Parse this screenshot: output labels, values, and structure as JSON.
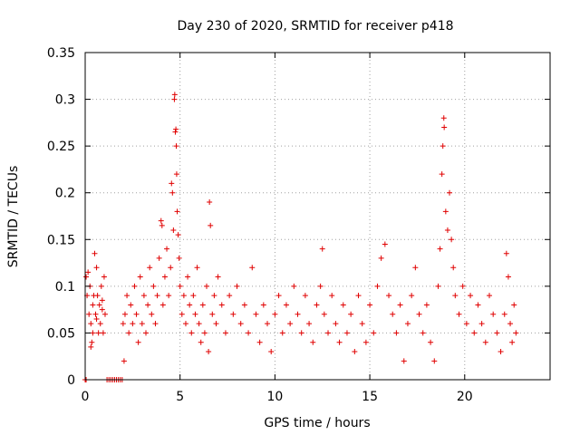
{
  "chart_data": {
    "type": "scatter",
    "title": "Day 230 of 2020, SRMTID for receiver p418",
    "xlabel": "GPS time / hours",
    "ylabel": "SRMTID / TECUs",
    "xlim": [
      0,
      24.5
    ],
    "ylim": [
      0,
      0.35
    ],
    "xticks": [
      0,
      5,
      10,
      15,
      20
    ],
    "xtick_labels": [
      "0",
      "5",
      "10",
      "15",
      "20"
    ],
    "yticks": [
      0,
      0.05,
      0.1,
      0.15,
      0.2,
      0.25,
      0.3,
      0.35
    ],
    "ytick_labels": [
      "0",
      "0.05",
      "0.1",
      "0.15",
      "0.2",
      "0.25",
      "0.3",
      "0.35"
    ],
    "grid": true,
    "marker": "+",
    "color": "#e00000",
    "series": [
      {
        "name": "SRMTID",
        "points": [
          [
            0.0,
            0.0
          ],
          [
            0.05,
            0.0
          ],
          [
            0.05,
            0.11
          ],
          [
            0.1,
            0.09
          ],
          [
            0.15,
            0.115
          ],
          [
            0.2,
            0.07
          ],
          [
            0.25,
            0.1
          ],
          [
            0.3,
            0.06
          ],
          [
            0.35,
            0.04
          ],
          [
            0.4,
            0.08
          ],
          [
            0.45,
            0.09
          ],
          [
            0.5,
            0.135
          ],
          [
            0.55,
            0.07
          ],
          [
            0.6,
            0.12
          ],
          [
            0.65,
            0.09
          ],
          [
            0.7,
            0.05
          ],
          [
            0.75,
            0.08
          ],
          [
            0.8,
            0.06
          ],
          [
            0.85,
            0.1
          ],
          [
            0.9,
            0.075
          ],
          [
            0.95,
            0.05
          ],
          [
            1.0,
            0.11
          ],
          [
            1.05,
            0.07
          ],
          [
            0.3,
            0.035
          ],
          [
            0.4,
            0.05
          ],
          [
            0.6,
            0.065
          ],
          [
            0.9,
            0.085
          ],
          [
            1.15,
            0.0
          ],
          [
            1.25,
            0.0
          ],
          [
            1.35,
            0.0
          ],
          [
            1.45,
            0.0
          ],
          [
            1.55,
            0.0
          ],
          [
            1.65,
            0.0
          ],
          [
            1.75,
            0.0
          ],
          [
            1.85,
            0.0
          ],
          [
            1.95,
            0.0
          ],
          [
            2.0,
            0.06
          ],
          [
            2.05,
            0.02
          ],
          [
            2.1,
            0.07
          ],
          [
            2.2,
            0.09
          ],
          [
            2.3,
            0.05
          ],
          [
            2.4,
            0.08
          ],
          [
            2.5,
            0.06
          ],
          [
            2.6,
            0.1
          ],
          [
            2.7,
            0.07
          ],
          [
            2.8,
            0.04
          ],
          [
            2.9,
            0.11
          ],
          [
            3.0,
            0.06
          ],
          [
            3.1,
            0.09
          ],
          [
            3.2,
            0.05
          ],
          [
            3.3,
            0.08
          ],
          [
            3.4,
            0.12
          ],
          [
            3.5,
            0.07
          ],
          [
            3.6,
            0.1
          ],
          [
            3.7,
            0.06
          ],
          [
            3.8,
            0.09
          ],
          [
            3.9,
            0.13
          ],
          [
            4.0,
            0.17
          ],
          [
            4.05,
            0.165
          ],
          [
            4.1,
            0.08
          ],
          [
            4.2,
            0.11
          ],
          [
            4.3,
            0.14
          ],
          [
            4.4,
            0.09
          ],
          [
            4.5,
            0.12
          ],
          [
            4.55,
            0.21
          ],
          [
            4.6,
            0.2
          ],
          [
            4.65,
            0.16
          ],
          [
            4.7,
            0.3
          ],
          [
            4.72,
            0.305
          ],
          [
            4.75,
            0.265
          ],
          [
            4.78,
            0.268
          ],
          [
            4.8,
            0.25
          ],
          [
            4.82,
            0.22
          ],
          [
            4.85,
            0.18
          ],
          [
            4.9,
            0.155
          ],
          [
            4.95,
            0.13
          ],
          [
            5.0,
            0.1
          ],
          [
            5.1,
            0.07
          ],
          [
            5.2,
            0.09
          ],
          [
            5.3,
            0.06
          ],
          [
            5.4,
            0.11
          ],
          [
            5.5,
            0.08
          ],
          [
            5.6,
            0.05
          ],
          [
            5.7,
            0.09
          ],
          [
            5.8,
            0.07
          ],
          [
            5.9,
            0.12
          ],
          [
            6.0,
            0.06
          ],
          [
            6.1,
            0.04
          ],
          [
            6.2,
            0.08
          ],
          [
            6.3,
            0.05
          ],
          [
            6.4,
            0.1
          ],
          [
            6.5,
            0.03
          ],
          [
            6.55,
            0.19
          ],
          [
            6.6,
            0.165
          ],
          [
            6.7,
            0.07
          ],
          [
            6.8,
            0.09
          ],
          [
            6.9,
            0.06
          ],
          [
            7.0,
            0.11
          ],
          [
            7.2,
            0.08
          ],
          [
            7.4,
            0.05
          ],
          [
            7.6,
            0.09
          ],
          [
            7.8,
            0.07
          ],
          [
            8.0,
            0.1
          ],
          [
            8.2,
            0.06
          ],
          [
            8.4,
            0.08
          ],
          [
            8.6,
            0.05
          ],
          [
            8.8,
            0.12
          ],
          [
            9.0,
            0.07
          ],
          [
            9.2,
            0.04
          ],
          [
            9.4,
            0.08
          ],
          [
            9.6,
            0.06
          ],
          [
            9.8,
            0.03
          ],
          [
            10.0,
            0.07
          ],
          [
            10.2,
            0.09
          ],
          [
            10.4,
            0.05
          ],
          [
            10.6,
            0.08
          ],
          [
            10.8,
            0.06
          ],
          [
            11.0,
            0.1
          ],
          [
            11.2,
            0.07
          ],
          [
            11.4,
            0.05
          ],
          [
            11.6,
            0.09
          ],
          [
            11.8,
            0.06
          ],
          [
            12.0,
            0.04
          ],
          [
            12.2,
            0.08
          ],
          [
            12.4,
            0.1
          ],
          [
            12.5,
            0.14
          ],
          [
            12.6,
            0.07
          ],
          [
            12.8,
            0.05
          ],
          [
            13.0,
            0.09
          ],
          [
            13.2,
            0.06
          ],
          [
            13.4,
            0.04
          ],
          [
            13.6,
            0.08
          ],
          [
            13.8,
            0.05
          ],
          [
            14.0,
            0.07
          ],
          [
            14.2,
            0.03
          ],
          [
            14.4,
            0.09
          ],
          [
            14.6,
            0.06
          ],
          [
            14.8,
            0.04
          ],
          [
            15.0,
            0.08
          ],
          [
            15.2,
            0.05
          ],
          [
            15.4,
            0.1
          ],
          [
            15.6,
            0.13
          ],
          [
            15.8,
            0.145
          ],
          [
            16.0,
            0.09
          ],
          [
            16.2,
            0.07
          ],
          [
            16.4,
            0.05
          ],
          [
            16.6,
            0.08
          ],
          [
            16.8,
            0.02
          ],
          [
            17.0,
            0.06
          ],
          [
            17.2,
            0.09
          ],
          [
            17.4,
            0.12
          ],
          [
            17.6,
            0.07
          ],
          [
            17.8,
            0.05
          ],
          [
            18.0,
            0.08
          ],
          [
            18.2,
            0.04
          ],
          [
            18.4,
            0.02
          ],
          [
            18.6,
            0.1
          ],
          [
            18.7,
            0.14
          ],
          [
            18.8,
            0.22
          ],
          [
            18.85,
            0.25
          ],
          [
            18.9,
            0.28
          ],
          [
            18.92,
            0.27
          ],
          [
            19.0,
            0.18
          ],
          [
            19.1,
            0.16
          ],
          [
            19.2,
            0.2
          ],
          [
            19.3,
            0.15
          ],
          [
            19.4,
            0.12
          ],
          [
            19.5,
            0.09
          ],
          [
            19.7,
            0.07
          ],
          [
            19.9,
            0.1
          ],
          [
            20.1,
            0.06
          ],
          [
            20.3,
            0.09
          ],
          [
            20.5,
            0.05
          ],
          [
            20.7,
            0.08
          ],
          [
            20.9,
            0.06
          ],
          [
            21.1,
            0.04
          ],
          [
            21.3,
            0.09
          ],
          [
            21.5,
            0.07
          ],
          [
            21.7,
            0.05
          ],
          [
            21.9,
            0.03
          ],
          [
            22.1,
            0.07
          ],
          [
            22.2,
            0.135
          ],
          [
            22.3,
            0.11
          ],
          [
            22.4,
            0.06
          ],
          [
            22.5,
            0.04
          ],
          [
            22.6,
            0.08
          ],
          [
            22.7,
            0.05
          ]
        ]
      }
    ]
  }
}
